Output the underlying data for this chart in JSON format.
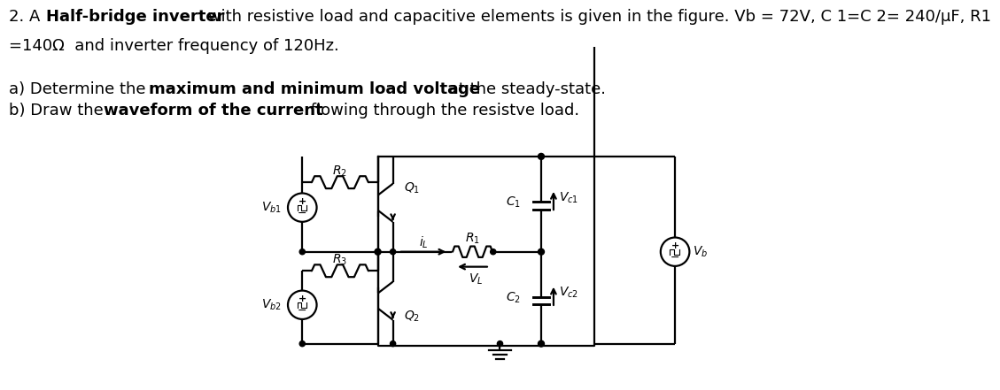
{
  "bg_color": "#ffffff",
  "text_color": "#000000",
  "font_size": 13,
  "lw": 1.6,
  "label_fs": 10,
  "title1_normal1": "2. A ",
  "title1_bold": "Half-bridge inverter",
  "title1_normal2": " with resistive load and capacitive elements is given in the figure. Vb = 72V, C 1=C 2= 240/μF, R1",
  "title2": "=140Ω  and inverter frequency of 120Hz.",
  "parta_normal1": "a) Determine the ",
  "parta_bold": "maximum and minimum load voltage",
  "parta_normal2": " at the steady-state.",
  "partb_normal1": "b) Draw the ",
  "partb_bold": "waveform of the current",
  "partb_normal2": " flowing through the resistve load."
}
